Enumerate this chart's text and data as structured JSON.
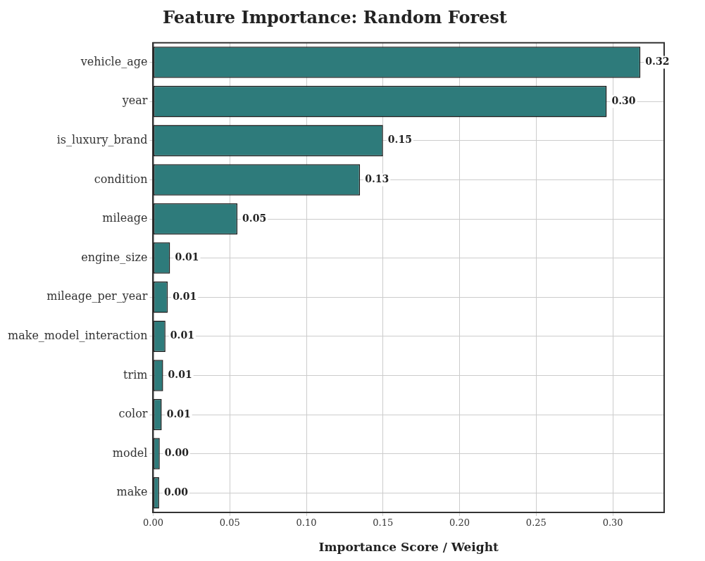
{
  "chart_data": {
    "type": "bar",
    "orientation": "horizontal",
    "title": "Feature Importance: Random Forest",
    "xlabel": "Importance Score / Weight",
    "categories": [
      "vehicle_age",
      "year",
      "is_luxury_brand",
      "condition",
      "mileage",
      "engine_size",
      "mileage_per_year",
      "make_model_interaction",
      "trim",
      "color",
      "model",
      "make"
    ],
    "values": [
      0.318,
      0.296,
      0.15,
      0.135,
      0.055,
      0.011,
      0.0095,
      0.008,
      0.0065,
      0.0056,
      0.0043,
      0.0039
    ],
    "value_labels": [
      "0.32",
      "0.30",
      "0.15",
      "0.13",
      "0.05",
      "0.01",
      "0.01",
      "0.01",
      "0.01",
      "0.01",
      "0.00",
      "0.00"
    ],
    "color": "#2e7b7b",
    "xlim": [
      0,
      0.3335
    ],
    "xticks": [
      {
        "value": 0,
        "label": "0.00"
      },
      {
        "value": 0.05,
        "label": "0.05"
      },
      {
        "value": 0.1,
        "label": "0.10"
      },
      {
        "value": 0.15,
        "label": "0.15"
      },
      {
        "value": 0.2,
        "label": "0.20"
      },
      {
        "value": 0.25,
        "label": "0.25"
      },
      {
        "value": 0.3,
        "label": "0.30"
      }
    ],
    "grid": true,
    "legend": false
  }
}
